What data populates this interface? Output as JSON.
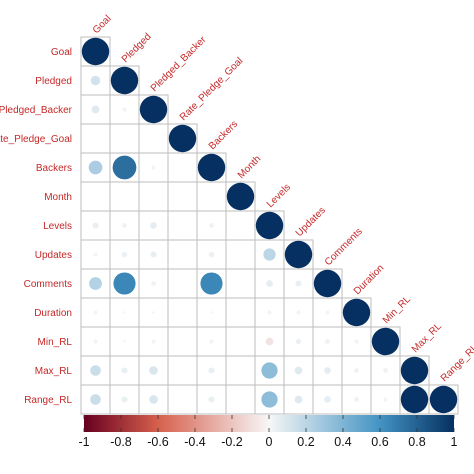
{
  "chart_data": {
    "type": "heatmap",
    "variables": [
      "Goal",
      "Pledged",
      "Pledged_Backer",
      "Rate_Pledge_Goal",
      "Backers",
      "Month",
      "Levels",
      "Updates",
      "Comments",
      "Duration",
      "Min_RL",
      "Max_RL",
      "Range_RL"
    ],
    "row_labels": [
      "Goal",
      "Pledged",
      "Pledged_Backer",
      "Rate_Pledge_Goal",
      "Backers",
      "Month",
      "Levels",
      "Updates",
      "Comments",
      "Duration",
      "Min_RL",
      "Max_RL",
      "Range_RL"
    ],
    "column_labels": [
      "Goal",
      "Pledged",
      "Pledged_Backer",
      "Rate_Pledge_Goal",
      "Backers",
      "Month",
      "Levels",
      "Updates",
      "Comments",
      "Duration",
      "Min_RL",
      "Max_RL",
      "Range_RL"
    ],
    "lower_triangle_correlations": [
      [
        1.0
      ],
      [
        0.12,
        1.0
      ],
      [
        0.08,
        0.02,
        1.0
      ],
      [
        0.0,
        0.0,
        0.0,
        1.0
      ],
      [
        0.25,
        0.75,
        0.02,
        0.0,
        1.0
      ],
      [
        0.0,
        0.0,
        0.0,
        0.0,
        0.0,
        1.0
      ],
      [
        0.05,
        0.03,
        0.06,
        0.0,
        0.03,
        0.0,
        1.0
      ],
      [
        0.02,
        0.04,
        0.05,
        0.0,
        0.04,
        0.0,
        0.2,
        1.0
      ],
      [
        0.22,
        0.65,
        0.03,
        0.0,
        0.65,
        0.0,
        0.06,
        0.05,
        1.0
      ],
      [
        0.02,
        0.01,
        0.01,
        0.0,
        0.01,
        0.0,
        0.02,
        0.02,
        0.02,
        1.0
      ],
      [
        0.02,
        0.01,
        0.02,
        0.0,
        0.02,
        0.0,
        -0.08,
        0.04,
        0.03,
        0.02,
        1.0
      ],
      [
        0.15,
        0.05,
        0.1,
        0.0,
        0.05,
        0.0,
        0.35,
        0.08,
        0.06,
        0.03,
        0.03,
        1.0
      ],
      [
        0.15,
        0.05,
        0.1,
        0.0,
        0.05,
        0.0,
        0.35,
        0.08,
        0.06,
        0.03,
        0.02,
        1.0,
        1.0
      ]
    ],
    "colorbar": {
      "range": [
        -1,
        1
      ],
      "ticks": [
        -1,
        -0.8,
        -0.6,
        -0.4,
        -0.2,
        0,
        0.2,
        0.4,
        0.6,
        0.8,
        1
      ],
      "tick_labels": [
        "-1",
        "-0.8",
        "-0.6",
        "-0.4",
        "-0.2",
        "0",
        "0.2",
        "0.4",
        "0.6",
        "0.8",
        "1"
      ],
      "colors": {
        "negative_end": "#67001f",
        "negative_mid": "#d6604d",
        "neutral": "#f7f7f7",
        "positive_mid": "#4393c3",
        "positive_end": "#053061"
      }
    },
    "label_color": "#c62828",
    "grid_color": "#bdbdbd"
  }
}
